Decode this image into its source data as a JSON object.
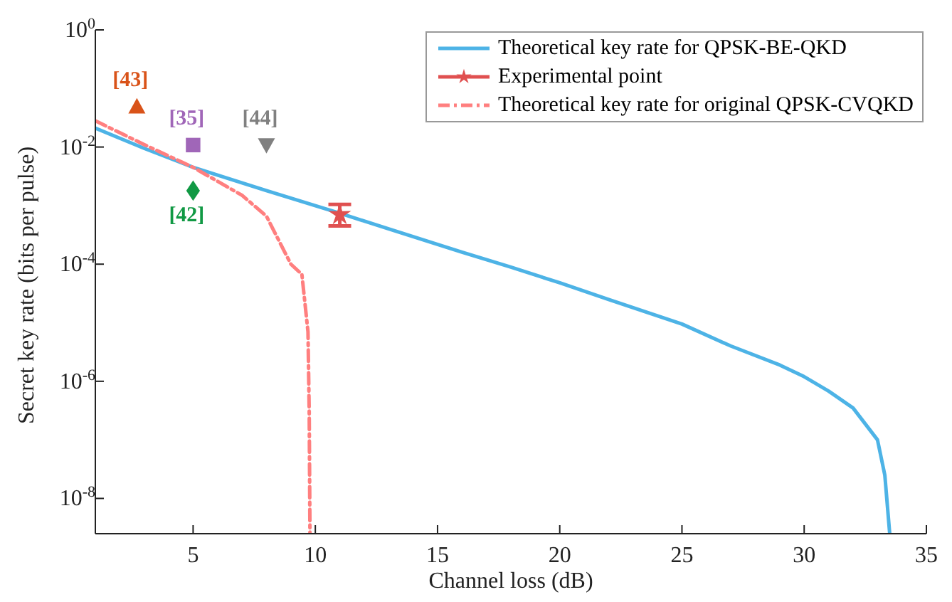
{
  "chart_data": {
    "type": "line",
    "xlabel": "Channel loss (dB)",
    "ylabel": "Secret key rate (bits per pulse)",
    "xlim": [
      1,
      35
    ],
    "xticks": [
      5,
      10,
      15,
      20,
      25,
      30,
      35
    ],
    "ylim": [
      2.5e-09,
      1
    ],
    "log": "y",
    "yticks": [
      {
        "value": 1e-08,
        "label": "10$^{-8}$"
      },
      {
        "value": 1e-06,
        "label": "10$^{-6}$"
      },
      {
        "value": 0.0001,
        "label": "10$^{-4}$"
      },
      {
        "value": 0.01,
        "label": "10$^{-2}$"
      },
      {
        "value": 1,
        "label": "10$^{0}$"
      }
    ],
    "grid": false,
    "legend": "top right",
    "series": [
      {
        "name": "Theoretical key rate for QPSK-BE-QKD",
        "color": "#4db3e6",
        "line_style": "solid",
        "marker": "none",
        "x": [
          1,
          3,
          5,
          8,
          11,
          13,
          16,
          18,
          20,
          22,
          25,
          27,
          29,
          30,
          31,
          32,
          33,
          33.3,
          33.5
        ],
        "values": [
          0.021,
          0.0095,
          0.0045,
          0.0018,
          0.00074,
          0.0004,
          0.00016,
          8.9e-05,
          4.8e-05,
          2.5e-05,
          9.5e-06,
          4e-06,
          1.9e-06,
          1.2e-06,
          6.8e-07,
          3.5e-07,
          1e-07,
          2.5e-08,
          2.5e-09
        ]
      },
      {
        "name": "Experimental point",
        "color": "#e05050",
        "line_style": "solid",
        "marker": "star",
        "x": [
          11
        ],
        "values": [
          0.0007
        ],
        "errors": [
          [
            0.00045,
            0.00105
          ]
        ]
      },
      {
        "name": "Theoretical key rate for original QPSK-CVQKD",
        "color": "#ff7f7f",
        "line_style": "dashed",
        "marker": "none",
        "x": [
          1,
          3,
          5,
          7,
          8,
          9,
          9.45,
          9.7,
          9.75,
          9.78
        ],
        "values": [
          0.028,
          0.011,
          0.0045,
          0.0015,
          0.00066,
          0.0001,
          6.7e-05,
          7e-06,
          3e-07,
          2.5e-09
        ]
      },
      {
        "name": "[43]",
        "type": "scatter",
        "color": "#d95319",
        "marker": "triangle",
        "x": [
          2.7
        ],
        "values": [
          0.049
        ]
      },
      {
        "name": "[35]",
        "type": "scatter",
        "color": "#a066b8",
        "marker": "square",
        "x": [
          5
        ],
        "values": [
          0.0108
        ]
      },
      {
        "name": "[44]",
        "type": "scatter",
        "color": "#808080",
        "marker": "triangle-down",
        "x": [
          8
        ],
        "values": [
          0.0108
        ]
      },
      {
        "name": "[42]",
        "type": "scatter",
        "color": "#119944",
        "marker": "diamond",
        "x": [
          5
        ],
        "values": [
          0.0018
        ]
      }
    ]
  }
}
